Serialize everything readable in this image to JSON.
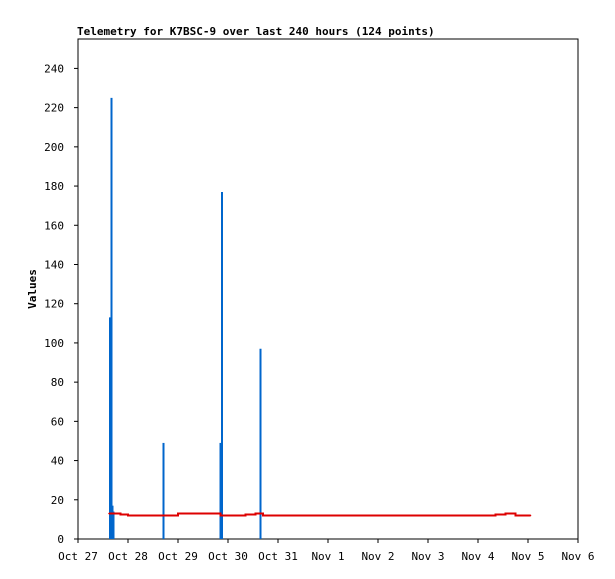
{
  "chart_data": {
    "type": "line",
    "title": "Telemetry for K7BSC-9 over last 240 hours (124 points)",
    "xlabel": "",
    "ylabel": "Values",
    "ylim": [
      0,
      255
    ],
    "x_ticks": [
      "Oct 27",
      "Oct 28",
      "Oct 29",
      "Oct 30",
      "Oct 31",
      "Nov 1",
      "Nov 2",
      "Nov 3",
      "Nov 4",
      "Nov 5",
      "Nov 6"
    ],
    "xlim_days": [
      0,
      10
    ],
    "y_ticks": [
      0,
      20,
      40,
      60,
      80,
      100,
      120,
      140,
      160,
      180,
      200,
      220,
      240
    ],
    "grid": false,
    "legend": "none",
    "colors": {
      "impulses": "#0066cc",
      "line": "#dd0000"
    },
    "series": [
      {
        "style": "impulses",
        "points": [
          [
            0.64,
            113
          ],
          [
            0.67,
            225
          ],
          [
            0.69,
            17
          ],
          [
            0.71,
            14
          ],
          [
            1.71,
            49
          ],
          [
            2.85,
            49
          ],
          [
            2.88,
            177
          ],
          [
            3.65,
            97
          ]
        ]
      },
      {
        "style": "step-line",
        "points": [
          [
            0.62,
            13
          ],
          [
            0.75,
            13
          ],
          [
            0.85,
            12.5
          ],
          [
            1.0,
            12
          ],
          [
            1.8,
            12
          ],
          [
            2.0,
            13
          ],
          [
            2.75,
            13
          ],
          [
            2.85,
            12
          ],
          [
            3.25,
            12
          ],
          [
            3.35,
            12.5
          ],
          [
            3.55,
            13
          ],
          [
            3.7,
            12
          ],
          [
            8.05,
            12
          ],
          [
            8.35,
            12.5
          ],
          [
            8.55,
            13
          ],
          [
            8.75,
            12
          ],
          [
            9.05,
            12
          ]
        ]
      }
    ]
  }
}
